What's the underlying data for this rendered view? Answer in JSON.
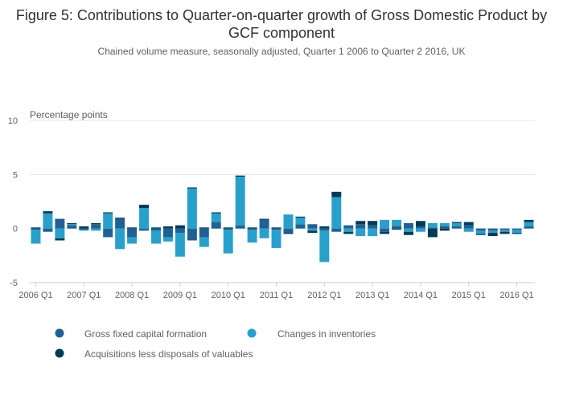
{
  "colors": {
    "gfcf": "#206095",
    "inventories": "#27a0cc",
    "valuables": "#003c57",
    "grid": "#e6e6e6",
    "axis": "#cccccc"
  },
  "chart_data": {
    "type": "bar",
    "stacked": true,
    "title": "Figure 5: Contributions to Quarter-on-quarter growth of Gross Domestic Product by GCF component",
    "subtitle": "Chained volume measure, seasonally adjusted, Quarter 1 2006 to Quarter 2 2016, UK",
    "ylabel": "Percentage points",
    "ylim": [
      -5,
      10
    ],
    "yticks": [
      -5,
      0,
      5,
      10
    ],
    "categories": [
      "2006 Q1",
      "2006 Q2",
      "2006 Q3",
      "2006 Q4",
      "2007 Q1",
      "2007 Q2",
      "2007 Q3",
      "2007 Q4",
      "2008 Q1",
      "2008 Q2",
      "2008 Q3",
      "2008 Q4",
      "2009 Q1",
      "2009 Q2",
      "2009 Q3",
      "2009 Q4",
      "2010 Q1",
      "2010 Q2",
      "2010 Q3",
      "2010 Q4",
      "2011 Q1",
      "2011 Q2",
      "2011 Q3",
      "2011 Q4",
      "2012 Q1",
      "2012 Q2",
      "2012 Q3",
      "2012 Q4",
      "2013 Q1",
      "2013 Q2",
      "2013 Q3",
      "2013 Q4",
      "2014 Q1",
      "2014 Q2",
      "2014 Q3",
      "2014 Q4",
      "2015 Q1",
      "2015 Q2",
      "2015 Q3",
      "2015 Q4",
      "2016 Q1",
      "2016 Q2"
    ],
    "xtick_labels": [
      "2006 Q1",
      "2007 Q1",
      "2008 Q1",
      "2009 Q1",
      "2010 Q1",
      "2011 Q1",
      "2012 Q1",
      "2013 Q1",
      "2014 Q1",
      "2015 Q1",
      "2016 Q1"
    ],
    "series": [
      {
        "name": "Gross fixed capital formation",
        "key": "gfcf",
        "values": [
          -0.1,
          -0.3,
          0.9,
          0.3,
          -0.1,
          0.4,
          -0.8,
          0.9,
          -0.8,
          -0.2,
          -0.2,
          -0.8,
          -0.4,
          -1.1,
          -0.8,
          0.6,
          -0.1,
          0.3,
          -0.1,
          0.8,
          -0.1,
          -0.4,
          0.4,
          0.4,
          -0.2,
          -0.3,
          0.3,
          0.4,
          0.3,
          -0.3,
          0.2,
          0.5,
          0.2,
          0.1,
          0.2,
          0.2,
          0.3,
          -0.2,
          -0.2,
          -0.1,
          -0.1,
          0.2
        ]
      },
      {
        "name": "Changes in inventories",
        "key": "inventories",
        "values": [
          -1.3,
          1.4,
          -0.9,
          0.1,
          -0.1,
          -0.2,
          1.4,
          -1.9,
          -0.6,
          1.9,
          -1.2,
          -0.4,
          -2.2,
          3.7,
          -0.9,
          0.8,
          -2.2,
          4.5,
          -1.2,
          -0.9,
          -1.7,
          1.3,
          0.6,
          -0.2,
          -2.9,
          2.9,
          -0.3,
          -0.7,
          -0.7,
          0.8,
          0.6,
          -0.3,
          -0.3,
          0.4,
          0.3,
          0.3,
          -0.3,
          -0.3,
          -0.2,
          -0.2,
          -0.3,
          0.4
        ]
      },
      {
        "name": "Acquisitions less disposals of valuables",
        "key": "valuables",
        "values": [
          0.1,
          0.2,
          -0.2,
          0.1,
          0.2,
          0.1,
          0.1,
          0.1,
          0.1,
          0.3,
          0.1,
          0.2,
          0.3,
          0.1,
          0.1,
          0.1,
          0.1,
          0.1,
          0.1,
          0.1,
          0.1,
          -0.1,
          0.1,
          -0.2,
          0.2,
          0.5,
          -0.2,
          0.3,
          0.4,
          -0.2,
          -0.1,
          -0.3,
          0.5,
          -0.8,
          -0.2,
          0.1,
          0.3,
          -0.1,
          -0.3,
          -0.2,
          -0.1,
          0.2
        ]
      }
    ],
    "legend_position": "bottom-left"
  }
}
